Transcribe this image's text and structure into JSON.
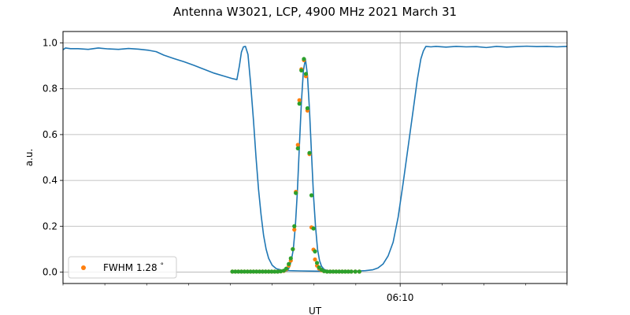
{
  "chart_data": {
    "type": "line",
    "title": "Antenna W3021, LCP, 4900 MHz 2021 March 31",
    "xlabel": "UT",
    "ylabel": "a.u.",
    "xlim": [
      0,
      100
    ],
    "ylim": [
      -0.05,
      1.05
    ],
    "x_major_ticks": [
      {
        "x": 66.9,
        "label": "06:10"
      }
    ],
    "x_minor_ticks": [
      0,
      8.3,
      16.6,
      24.9,
      33.2,
      41.5,
      49.8,
      58.1,
      75.2,
      83.5,
      91.8,
      100
    ],
    "y_ticks": [
      0.0,
      0.2,
      0.4,
      0.6,
      0.8,
      1.0
    ],
    "y_tick_labels": [
      "0.0",
      "0.2",
      "0.4",
      "0.6",
      "0.8",
      "1.0"
    ],
    "grid": true,
    "legend": {
      "placement": "lower-left",
      "entries": [
        "FWHM 1.28$^\\circ$"
      ],
      "display": [
        "FWHM 1.28",
        "°"
      ]
    },
    "series": [
      {
        "role": "measured",
        "color": "#1f77b4",
        "points": [
          [
            0,
            0.97
          ],
          [
            0.5,
            0.978
          ],
          [
            1.5,
            0.975
          ],
          [
            3,
            0.975
          ],
          [
            5,
            0.972
          ],
          [
            7,
            0.978
          ],
          [
            9,
            0.974
          ],
          [
            11,
            0.972
          ],
          [
            13,
            0.976
          ],
          [
            15,
            0.973
          ],
          [
            17,
            0.968
          ],
          [
            18.5,
            0.962
          ],
          [
            20,
            0.947
          ],
          [
            22,
            0.932
          ],
          [
            24,
            0.918
          ],
          [
            26,
            0.902
          ],
          [
            28,
            0.885
          ],
          [
            30,
            0.868
          ],
          [
            32,
            0.855
          ],
          [
            33.5,
            0.845
          ],
          [
            34.5,
            0.84
          ],
          [
            35,
            0.9
          ],
          [
            35.4,
            0.96
          ],
          [
            35.8,
            0.983
          ],
          [
            36.2,
            0.985
          ],
          [
            36.7,
            0.95
          ],
          [
            37.2,
            0.83
          ],
          [
            37.8,
            0.66
          ],
          [
            38.3,
            0.5
          ],
          [
            38.8,
            0.36
          ],
          [
            39.3,
            0.25
          ],
          [
            39.8,
            0.16
          ],
          [
            40.3,
            0.1
          ],
          [
            40.8,
            0.06
          ],
          [
            41.5,
            0.03
          ],
          [
            42.3,
            0.015
          ],
          [
            43.5,
            0.008
          ],
          [
            45,
            0.006
          ],
          [
            47,
            0.005
          ],
          [
            50,
            0.004
          ],
          [
            55,
            0.003
          ],
          [
            58,
            0.004
          ],
          [
            60,
            0.006
          ],
          [
            61.5,
            0.01
          ],
          [
            62.5,
            0.018
          ],
          [
            63.5,
            0.035
          ],
          [
            64.5,
            0.07
          ],
          [
            65.5,
            0.13
          ],
          [
            66.5,
            0.24
          ],
          [
            67.5,
            0.39
          ],
          [
            68.5,
            0.55
          ],
          [
            69.5,
            0.71
          ],
          [
            70.3,
            0.84
          ],
          [
            71,
            0.93
          ],
          [
            71.5,
            0.965
          ],
          [
            72,
            0.985
          ],
          [
            73,
            0.983
          ],
          [
            74,
            0.985
          ],
          [
            76,
            0.982
          ],
          [
            78,
            0.985
          ],
          [
            80,
            0.983
          ],
          [
            82,
            0.984
          ],
          [
            84,
            0.98
          ],
          [
            86,
            0.985
          ],
          [
            88,
            0.982
          ],
          [
            90,
            0.984
          ],
          [
            92,
            0.986
          ],
          [
            94,
            0.984
          ],
          [
            96,
            0.985
          ],
          [
            98,
            0.983
          ],
          [
            100,
            0.985
          ]
        ]
      },
      {
        "role": "main-lobe",
        "color": "#1f77b4",
        "points": [
          [
            33.5,
            0.003
          ],
          [
            43.5,
            0.003
          ],
          [
            44.5,
            0.005
          ],
          [
            44.9,
            0.02
          ],
          [
            45.3,
            0.05
          ],
          [
            45.7,
            0.1
          ],
          [
            46.1,
            0.2
          ],
          [
            46.5,
            0.35
          ],
          [
            46.9,
            0.55
          ],
          [
            47.3,
            0.74
          ],
          [
            47.7,
            0.88
          ],
          [
            48.1,
            0.93
          ],
          [
            48.5,
            0.86
          ],
          [
            48.9,
            0.71
          ],
          [
            49.3,
            0.52
          ],
          [
            49.7,
            0.335
          ],
          [
            50.1,
            0.2
          ],
          [
            50.5,
            0.1
          ],
          [
            50.9,
            0.05
          ],
          [
            51.3,
            0.025
          ],
          [
            51.8,
            0.012
          ],
          [
            52.5,
            0.006
          ],
          [
            53.5,
            0.004
          ],
          [
            55,
            0.003
          ],
          [
            57,
            0.003
          ],
          [
            59,
            0.003
          ]
        ]
      },
      {
        "name": "FWHM 1.28$^\\circ$",
        "role": "fit",
        "color": "#ff7f0e",
        "points": [
          [
            33.6,
            0.002
          ],
          [
            34.2,
            0.002
          ],
          [
            34.8,
            0.002
          ],
          [
            35.4,
            0.002
          ],
          [
            36,
            0.002
          ],
          [
            36.6,
            0.002
          ],
          [
            37.2,
            0.002
          ],
          [
            37.8,
            0.002
          ],
          [
            38.4,
            0.002
          ],
          [
            39,
            0.002
          ],
          [
            39.6,
            0.002
          ],
          [
            40.2,
            0.002
          ],
          [
            40.8,
            0.002
          ],
          [
            41.4,
            0.002
          ],
          [
            42,
            0.002
          ],
          [
            42.6,
            0.002
          ],
          [
            43.2,
            0.003
          ],
          [
            43.8,
            0.005
          ],
          [
            44.3,
            0.012
          ],
          [
            44.8,
            0.028
          ],
          [
            45.2,
            0.05
          ],
          [
            45.6,
            0.1
          ],
          [
            45.9,
            0.185
          ],
          [
            46.2,
            0.35
          ],
          [
            46.6,
            0.555
          ],
          [
            46.9,
            0.75
          ],
          [
            47.3,
            0.885
          ],
          [
            47.8,
            0.925
          ],
          [
            48.2,
            0.855
          ],
          [
            48.5,
            0.705
          ],
          [
            48.9,
            0.515
          ],
          [
            49.3,
            0.195
          ],
          [
            49.7,
            0.098
          ],
          [
            50,
            0.055
          ],
          [
            50.4,
            0.028
          ],
          [
            50.8,
            0.015
          ],
          [
            51.3,
            0.008
          ],
          [
            51.8,
            0.004
          ],
          [
            52.4,
            0.002
          ],
          [
            53,
            0.002
          ],
          [
            53.6,
            0.002
          ],
          [
            54.2,
            0.002
          ],
          [
            54.8,
            0.002
          ],
          [
            55.4,
            0.002
          ],
          [
            56,
            0.002
          ],
          [
            56.6,
            0.002
          ],
          [
            57.2,
            0.002
          ],
          [
            58,
            0.002
          ],
          [
            58.8,
            0.002
          ]
        ]
      },
      {
        "role": "samples",
        "color": "#2ca02c",
        "points": [
          [
            33.6,
            0.002
          ],
          [
            34.2,
            0.002
          ],
          [
            34.8,
            0.002
          ],
          [
            35.4,
            0.002
          ],
          [
            36,
            0.002
          ],
          [
            36.6,
            0.002
          ],
          [
            37.2,
            0.002
          ],
          [
            37.8,
            0.002
          ],
          [
            38.4,
            0.002
          ],
          [
            39,
            0.002
          ],
          [
            39.6,
            0.002
          ],
          [
            40.2,
            0.002
          ],
          [
            40.8,
            0.002
          ],
          [
            41.4,
            0.002
          ],
          [
            42,
            0.002
          ],
          [
            42.6,
            0.002
          ],
          [
            43.2,
            0.003
          ],
          [
            43.8,
            0.006
          ],
          [
            44.3,
            0.015
          ],
          [
            44.8,
            0.035
          ],
          [
            45.2,
            0.06
          ],
          [
            45.6,
            0.1
          ],
          [
            45.9,
            0.2
          ],
          [
            46.2,
            0.345
          ],
          [
            46.6,
            0.54
          ],
          [
            46.9,
            0.735
          ],
          [
            47.3,
            0.88
          ],
          [
            47.8,
            0.93
          ],
          [
            48.2,
            0.865
          ],
          [
            48.5,
            0.715
          ],
          [
            48.9,
            0.52
          ],
          [
            49.3,
            0.335
          ],
          [
            49.7,
            0.19
          ],
          [
            50,
            0.09
          ],
          [
            50.4,
            0.04
          ],
          [
            50.8,
            0.02
          ],
          [
            51.3,
            0.01
          ],
          [
            51.8,
            0.004
          ],
          [
            52.4,
            0.002
          ],
          [
            53,
            0.002
          ],
          [
            53.6,
            0.002
          ],
          [
            54.2,
            0.002
          ],
          [
            54.8,
            0.002
          ],
          [
            55.4,
            0.002
          ],
          [
            56,
            0.002
          ],
          [
            56.6,
            0.002
          ],
          [
            57.2,
            0.002
          ],
          [
            58,
            0.002
          ],
          [
            58.8,
            0.002
          ]
        ]
      }
    ]
  }
}
